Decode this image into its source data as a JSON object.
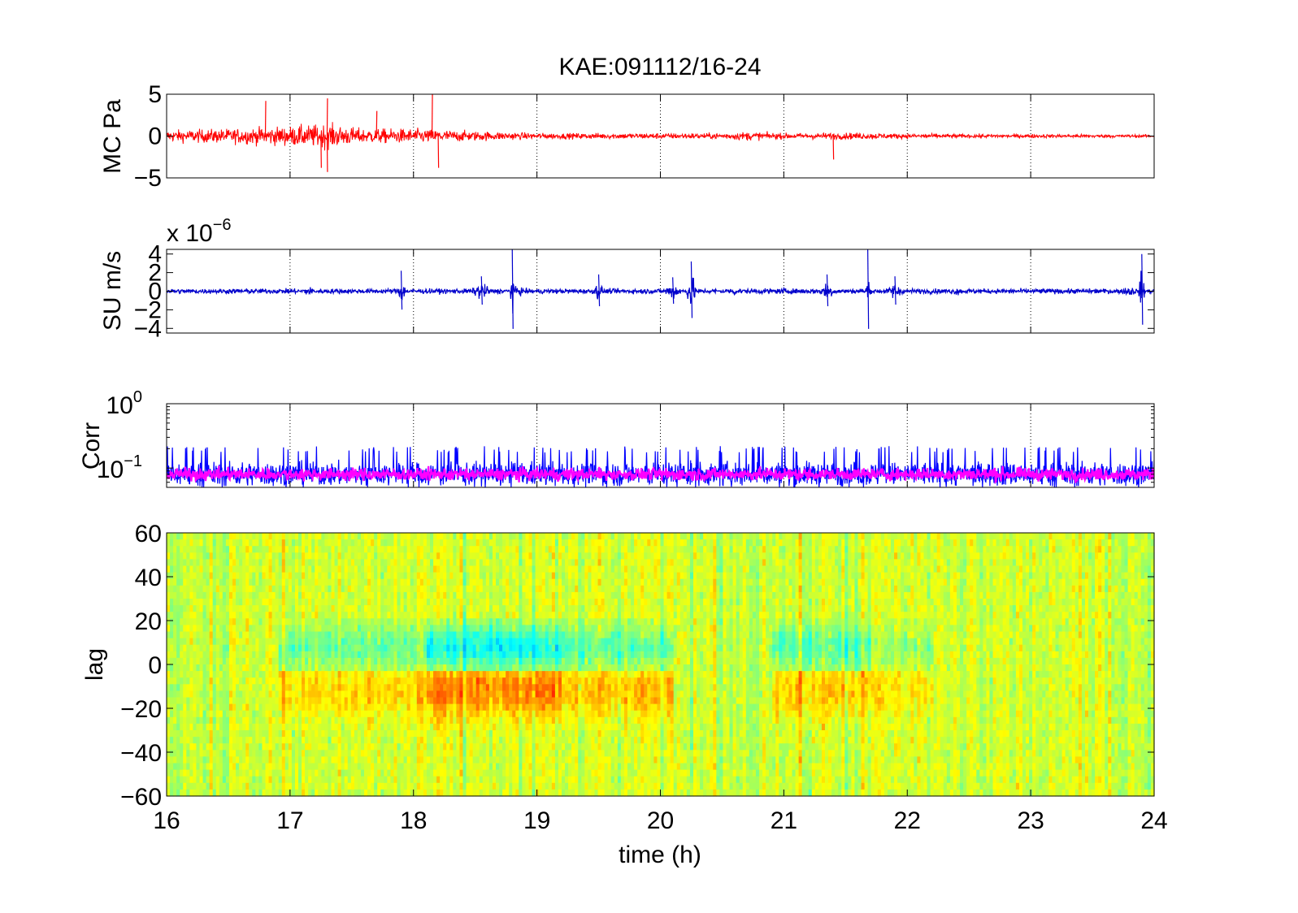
{
  "chart_data": [
    {
      "id": "mc",
      "type": "line",
      "title": "KAE:091112/16-24",
      "ylabel": "MC Pa",
      "xlim": [
        16,
        24
      ],
      "ylim": [
        -5,
        5
      ],
      "yticks": [
        5,
        0,
        -5
      ],
      "ytick_labels": [
        "5",
        "0",
        "−5"
      ],
      "grid": "x",
      "series": [
        {
          "color": "#ff0000",
          "envelope": {
            "x": [
              16,
              16.5,
              17,
              17.3,
              17.6,
              18,
              18.2,
              18.5,
              18.8,
              19,
              19.5,
              20,
              20.5,
              20.7,
              21,
              21.5,
              22,
              22.5,
              23,
              23.5,
              24
            ],
            "amplitude": [
              1.2,
              1.5,
              2.0,
              2.5,
              1.5,
              1.5,
              1.3,
              1.0,
              0.8,
              0.6,
              0.6,
              0.6,
              0.6,
              0.9,
              0.6,
              0.7,
              0.5,
              0.4,
              0.4,
              0.35,
              0.3
            ]
          },
          "spikes": [
            {
              "x": 16.8,
              "y": 4.2
            },
            {
              "x": 17.3,
              "y": 4.5
            },
            {
              "x": 17.3,
              "y": -4.3
            },
            {
              "x": 17.25,
              "y": -3.8
            },
            {
              "x": 18.15,
              "y": 5.0
            },
            {
              "x": 18.2,
              "y": -3.8
            },
            {
              "x": 17.7,
              "y": 3.0
            },
            {
              "x": 21.4,
              "y": -2.8
            }
          ]
        }
      ]
    },
    {
      "id": "su",
      "type": "line",
      "ylabel": "SU m/s",
      "multiplier_label": "x 10",
      "multiplier_exponent": "−6",
      "xlim": [
        16,
        24
      ],
      "ylim": [
        -4.5,
        4.5
      ],
      "yticks": [
        4,
        2,
        0,
        -2,
        -4
      ],
      "ytick_labels": [
        "4",
        "2",
        "0",
        "−2",
        "−4"
      ],
      "grid": "x",
      "series": [
        {
          "color": "#0000cc",
          "baseline_amplitude": 0.25,
          "bursts": [
            {
              "x": 17.0,
              "amp": 0.8,
              "width": 0.05
            },
            {
              "x": 17.15,
              "amp": 0.8,
              "width": 0.1
            },
            {
              "x": 17.9,
              "amp": 2.2,
              "width": 0.05
            },
            {
              "x": 18.55,
              "amp": 1.6,
              "width": 0.1
            },
            {
              "x": 18.8,
              "amp": 4.5,
              "width": 0.02
            },
            {
              "x": 18.85,
              "amp": 1.0,
              "width": 0.06
            },
            {
              "x": 19.5,
              "amp": 1.8,
              "width": 0.05
            },
            {
              "x": 20.1,
              "amp": 1.5,
              "width": 0.1
            },
            {
              "x": 20.25,
              "amp": 3.2,
              "width": 0.05
            },
            {
              "x": 20.6,
              "amp": 1.0,
              "width": 0.03
            },
            {
              "x": 21.0,
              "amp": 0.6,
              "width": 0.05
            },
            {
              "x": 21.35,
              "amp": 1.8,
              "width": 0.08
            },
            {
              "x": 21.68,
              "amp": 4.5,
              "width": 0.02
            },
            {
              "x": 21.9,
              "amp": 1.6,
              "width": 0.08
            },
            {
              "x": 22.4,
              "amp": 0.8,
              "width": 0.05
            },
            {
              "x": 22.9,
              "amp": 0.5,
              "width": 0.05
            },
            {
              "x": 23.5,
              "amp": 0.6,
              "width": 0.05
            },
            {
              "x": 23.8,
              "amp": 1.0,
              "width": 0.1
            },
            {
              "x": 23.9,
              "amp": 4.0,
              "width": 0.03
            }
          ]
        }
      ]
    },
    {
      "id": "corr",
      "type": "line",
      "ylabel": "Corr",
      "yscale": "log",
      "xlim": [
        16,
        24
      ],
      "ylim": [
        0.05,
        1
      ],
      "yticks": [
        1,
        0.1
      ],
      "ytick_bases": [
        "10",
        "10"
      ],
      "ytick_exponents": [
        "0",
        "−1"
      ],
      "grid": "x",
      "series": [
        {
          "color": "#0000ff",
          "typical": 0.08,
          "spread": [
            0.05,
            0.22
          ]
        },
        {
          "color": "#ff00ff",
          "typical": 0.08,
          "spread": [
            0.05,
            0.13
          ]
        }
      ]
    },
    {
      "id": "lag",
      "type": "heatmap",
      "ylabel": "lag",
      "xlabel": "time (h)",
      "xlim": [
        16,
        24
      ],
      "ylim": [
        -60,
        60
      ],
      "xticks": [
        16,
        17,
        18,
        19,
        20,
        21,
        22,
        23,
        24
      ],
      "xtick_labels": [
        "16",
        "17",
        "18",
        "19",
        "20",
        "21",
        "22",
        "23",
        "24"
      ],
      "yticks": [
        60,
        40,
        20,
        0,
        -20,
        -40,
        -60
      ],
      "ytick_labels": [
        "60",
        "40",
        "20",
        "0",
        "−20",
        "−40",
        "−60"
      ],
      "colormap": "jet",
      "feature": {
        "description_values": "negative band above zero lag, positive band below zero lag",
        "segments": [
          {
            "x0": 16.9,
            "x1": 18.1,
            "strength": 0.5
          },
          {
            "x0": 18.1,
            "x1": 19.2,
            "strength": 1.0
          },
          {
            "x0": 19.2,
            "x1": 20.1,
            "strength": 0.6
          },
          {
            "x0": 20.9,
            "x1": 21.7,
            "strength": 0.6
          },
          {
            "x0": 21.7,
            "x1": 22.2,
            "strength": 0.3
          }
        ]
      }
    }
  ]
}
